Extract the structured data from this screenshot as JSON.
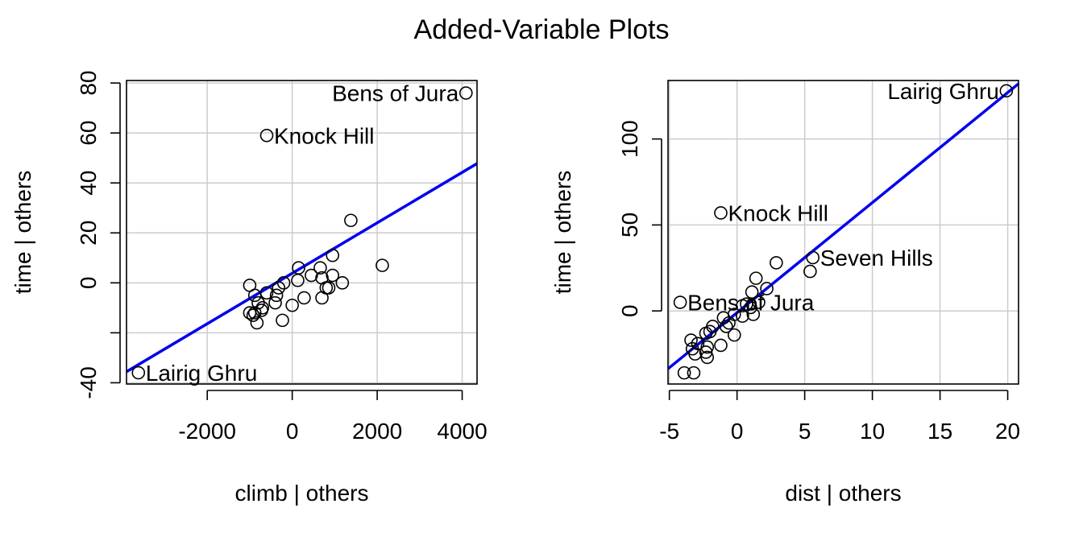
{
  "title": "Added-Variable Plots",
  "colors": {
    "fit_line": "#0000ee",
    "grid": "#cccccc",
    "points": "#000000"
  },
  "chart_data": [
    {
      "type": "scatter",
      "xlabel": "climb | others",
      "ylabel": "time  | others",
      "xlim": [
        -3900,
        4350
      ],
      "ylim": [
        -40.5,
        81
      ],
      "xticks": [
        -2000,
        0,
        2000,
        4000
      ],
      "yticks": [
        -40,
        -20,
        0,
        20,
        40,
        60,
        80
      ],
      "ytick_labels": [
        "-40",
        "",
        "0",
        "20",
        "40",
        "60",
        "80"
      ],
      "grid": true,
      "fit_line": {
        "slope": 0.0101,
        "intercept": 3.82
      },
      "points": [
        {
          "x": 4090,
          "y": 76,
          "label": "Bens of Jura"
        },
        {
          "x": -600,
          "y": 59,
          "label": "Knock Hill"
        },
        {
          "x": -3620,
          "y": -36,
          "label": "Lairig Ghru"
        },
        {
          "x": 1380,
          "y": 25
        },
        {
          "x": 2120,
          "y": 7
        },
        {
          "x": 950,
          "y": 11
        },
        {
          "x": 660,
          "y": 6
        },
        {
          "x": 150,
          "y": 6
        },
        {
          "x": 450,
          "y": 3
        },
        {
          "x": 700,
          "y": 2
        },
        {
          "x": 950,
          "y": 3
        },
        {
          "x": 1180,
          "y": 0
        },
        {
          "x": 130,
          "y": 1
        },
        {
          "x": -200,
          "y": 0
        },
        {
          "x": -320,
          "y": -2
        },
        {
          "x": -1000,
          "y": -1
        },
        {
          "x": 800,
          "y": -2
        },
        {
          "x": 860,
          "y": -2
        },
        {
          "x": -600,
          "y": -4
        },
        {
          "x": -880,
          "y": -5
        },
        {
          "x": 280,
          "y": -6
        },
        {
          "x": 700,
          "y": -6
        },
        {
          "x": -370,
          "y": -5
        },
        {
          "x": -400,
          "y": -8
        },
        {
          "x": -800,
          "y": -8
        },
        {
          "x": 0,
          "y": -9
        },
        {
          "x": -700,
          "y": -10
        },
        {
          "x": -720,
          "y": -11
        },
        {
          "x": -1000,
          "y": -12
        },
        {
          "x": -880,
          "y": -12
        },
        {
          "x": -920,
          "y": -13
        },
        {
          "x": -830,
          "y": -16
        },
        {
          "x": -230,
          "y": -15
        }
      ]
    },
    {
      "type": "scatter",
      "xlabel": "dist | others",
      "ylabel": "time  | others",
      "xlim": [
        -5.1,
        20.8
      ],
      "ylim": [
        -42.5,
        134
      ],
      "xticks": [
        -5,
        0,
        5,
        10,
        15,
        20
      ],
      "yticks": [
        0,
        50,
        100
      ],
      "grid": true,
      "fit_line": {
        "slope": 6.4,
        "intercept": -1
      },
      "points": [
        {
          "x": 19.9,
          "y": 128,
          "label": "Lairig Ghru"
        },
        {
          "x": -1.2,
          "y": 57,
          "label": "Knock Hill"
        },
        {
          "x": 5.6,
          "y": 31,
          "label": "Seven Hills"
        },
        {
          "x": -4.2,
          "y": 5,
          "label": "Bens of Jura"
        },
        {
          "x": 2.9,
          "y": 28
        },
        {
          "x": 5.4,
          "y": 23
        },
        {
          "x": 1.4,
          "y": 19
        },
        {
          "x": 2.2,
          "y": 13
        },
        {
          "x": 1.1,
          "y": 11
        },
        {
          "x": 1.6,
          "y": 5
        },
        {
          "x": 0.7,
          "y": 4
        },
        {
          "x": 0.4,
          "y": 3
        },
        {
          "x": 1.0,
          "y": 2
        },
        {
          "x": -0.2,
          "y": -2
        },
        {
          "x": 0.4,
          "y": -3
        },
        {
          "x": 1.2,
          "y": -2
        },
        {
          "x": -1.0,
          "y": -4
        },
        {
          "x": -0.6,
          "y": -7
        },
        {
          "x": -0.8,
          "y": -9
        },
        {
          "x": -1.8,
          "y": -9
        },
        {
          "x": -2.0,
          "y": -12
        },
        {
          "x": -2.3,
          "y": -13
        },
        {
          "x": -0.2,
          "y": -14
        },
        {
          "x": -3.4,
          "y": -17
        },
        {
          "x": -2.9,
          "y": -19
        },
        {
          "x": -1.2,
          "y": -20
        },
        {
          "x": -3.3,
          "y": -22
        },
        {
          "x": -2.2,
          "y": -21
        },
        {
          "x": -2.3,
          "y": -24
        },
        {
          "x": -3.1,
          "y": -25
        },
        {
          "x": -2.2,
          "y": -27
        },
        {
          "x": -3.9,
          "y": -36
        },
        {
          "x": -3.2,
          "y": -36
        }
      ]
    }
  ]
}
